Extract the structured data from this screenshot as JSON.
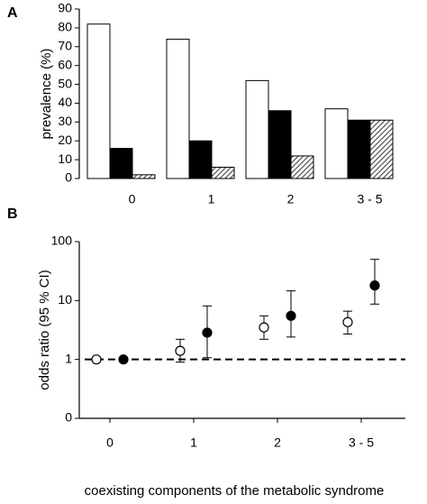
{
  "chart_data": [
    {
      "type": "bar",
      "panel": "A",
      "ylabel": "prevalence (%)",
      "categories": [
        "0",
        "1",
        "2",
        "3 - 5"
      ],
      "series": [
        {
          "color": "#ffffff",
          "values": [
            82,
            74,
            52,
            37
          ]
        },
        {
          "color": "#000000",
          "values": [
            16,
            20,
            36,
            31
          ]
        },
        {
          "color": "#555555",
          "hatch": true,
          "values": [
            2,
            6,
            12,
            31
          ]
        }
      ],
      "ylim": [
        0,
        90
      ],
      "yticks": [
        0,
        10,
        20,
        30,
        40,
        50,
        60,
        70,
        80,
        90
      ]
    },
    {
      "type": "scatter",
      "panel": "B",
      "ylabel": "odds ratio (95 % CI)",
      "xlabel": "coexisting components of the metabolic syndrome",
      "categories": [
        "0",
        "1",
        "2",
        "3 - 5"
      ],
      "ylog": true,
      "ylim": [
        0.1,
        100
      ],
      "yticks": [
        {
          "value": 0.1,
          "label": "0"
        },
        1,
        10,
        100
      ],
      "reference_line": 1,
      "series": [
        {
          "color": "#000000",
          "marker": "open",
          "values": [
            1,
            1.4,
            3.5,
            4.3
          ],
          "lower": [
            null,
            0.9,
            2.2,
            2.7
          ],
          "upper": [
            null,
            2.2,
            5.5,
            6.6
          ]
        },
        {
          "color": "#000000",
          "marker": "filled",
          "values": [
            1,
            2.85,
            5.5,
            18
          ],
          "lower": [
            null,
            1.07,
            2.4,
            8.7
          ],
          "upper": [
            null,
            8.1,
            14.6,
            50
          ]
        }
      ]
    }
  ]
}
